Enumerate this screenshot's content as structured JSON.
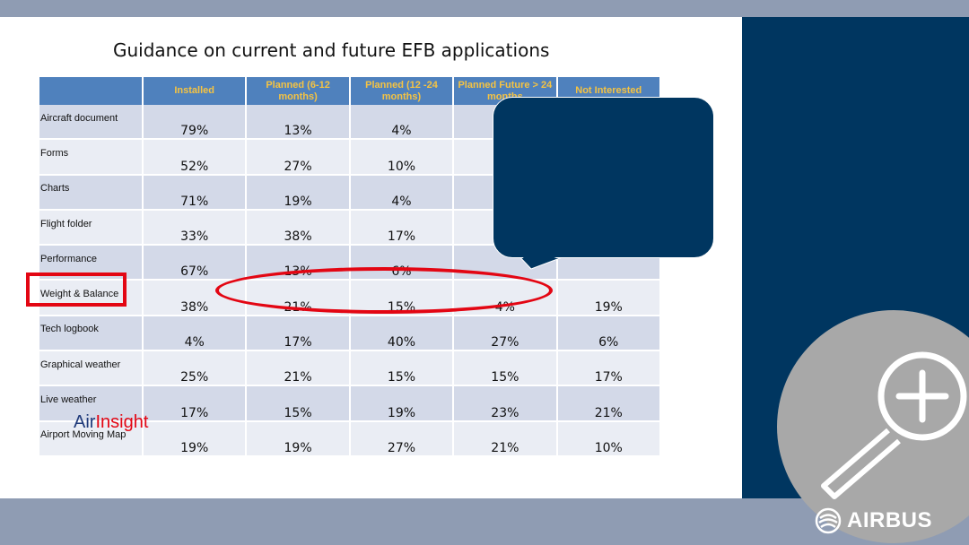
{
  "slide": {
    "title": "Guidance on current and future EFB applications"
  },
  "table": {
    "headers": [
      "",
      "Installed",
      "Planned (6-12 months)",
      "Planned (12 -24 months)",
      "Planned Future > 24 months",
      "Not Interested"
    ],
    "rows": [
      {
        "label": "Aircraft document",
        "values": [
          "79%",
          "13%",
          "4%",
          "",
          ""
        ]
      },
      {
        "label": "Forms",
        "values": [
          "52%",
          "27%",
          "10%",
          "",
          ""
        ]
      },
      {
        "label": "Charts",
        "values": [
          "71%",
          "19%",
          "4%",
          "",
          ""
        ]
      },
      {
        "label": "Flight folder",
        "values": [
          "33%",
          "38%",
          "17%",
          "",
          ""
        ]
      },
      {
        "label": "Performance",
        "values": [
          "67%",
          "13%",
          "6%",
          "",
          ""
        ]
      },
      {
        "label": "Weight & Balance",
        "values": [
          "38%",
          "21%",
          "15%",
          "4%",
          "19%"
        ]
      },
      {
        "label": "Tech logbook",
        "values": [
          "4%",
          "17%",
          "40%",
          "27%",
          "6%"
        ]
      },
      {
        "label": "Graphical weather",
        "values": [
          "25%",
          "21%",
          "15%",
          "15%",
          "17%"
        ]
      },
      {
        "label": "Live weather",
        "values": [
          "17%",
          "15%",
          "19%",
          "23%",
          "21%"
        ]
      },
      {
        "label": "Airport Moving Map",
        "values": [
          "19%",
          "19%",
          "27%",
          "21%",
          "10%"
        ]
      }
    ]
  },
  "logo": {
    "air": "Air",
    "insight": "Insight"
  },
  "brand": {
    "name": "AIRBUS"
  },
  "icons": {
    "zoom": "zoom-in-icon",
    "airbus": "airbus-logo-icon"
  },
  "colors": {
    "panel": "#003660",
    "bars": "#8f9cb3",
    "header_bg": "#4f81bd",
    "header_text": "#f5c342",
    "highlight": "#e30613"
  }
}
